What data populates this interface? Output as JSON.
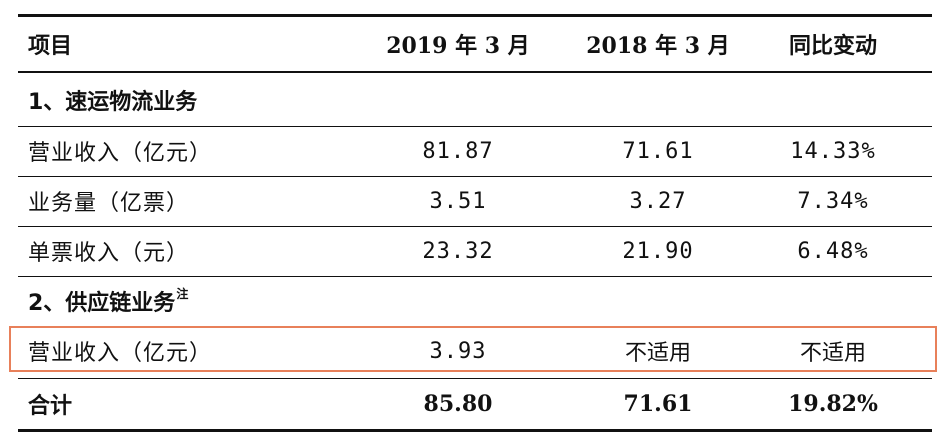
{
  "table": {
    "headers": [
      "项目",
      "2019 年 3 月",
      "2018 年 3 月",
      "同比变动"
    ],
    "section1": {
      "title": "1、速运物流业务"
    },
    "rows1": [
      {
        "label": "营业收入（亿元）",
        "v2019": "81.87",
        "v2018": "71.61",
        "change": "14.33%"
      },
      {
        "label": "业务量（亿票）",
        "v2019": "3.51",
        "v2018": "3.27",
        "change": "7.34%"
      },
      {
        "label": "单票收入（元）",
        "v2019": "23.32",
        "v2018": "21.90",
        "change": "6.48%"
      }
    ],
    "section2": {
      "title": "2、供应链业务",
      "note": "注"
    },
    "rows2": [
      {
        "label": "营业收入（亿元）",
        "v2019": "3.93",
        "v2018": "不适用",
        "change": "不适用"
      }
    ],
    "total": {
      "label": "合计",
      "v2019": "85.80",
      "v2018": "71.61",
      "change": "19.82%"
    }
  },
  "colors": {
    "rule": "#111111",
    "highlight": "#e8805a"
  }
}
